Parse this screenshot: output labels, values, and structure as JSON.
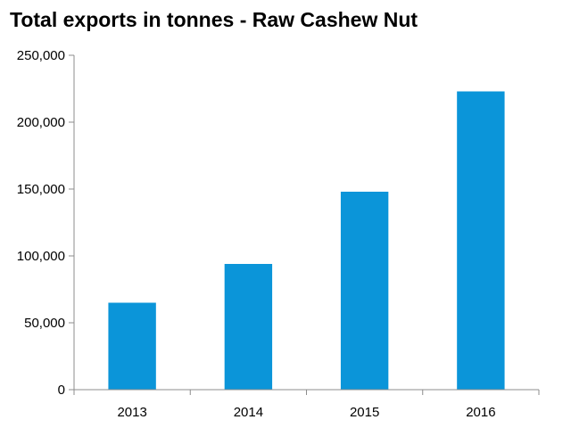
{
  "chart_data": {
    "type": "bar",
    "title": "Total exports in tonnes - Raw Cashew Nut",
    "xlabel": "",
    "ylabel": "",
    "categories": [
      "2013",
      "2014",
      "2015",
      "2016"
    ],
    "values": [
      65000,
      94000,
      148000,
      223000
    ],
    "ylim": [
      0,
      250000
    ],
    "yticks": [
      0,
      50000,
      100000,
      150000,
      200000,
      250000
    ],
    "ytick_labels": [
      "0",
      "50,000",
      "100,000",
      "150,000",
      "200,000",
      "250,000"
    ],
    "grid": false,
    "legend": "none",
    "bar_color": "#0b95d9",
    "axis_color": "#8c8c8c"
  }
}
